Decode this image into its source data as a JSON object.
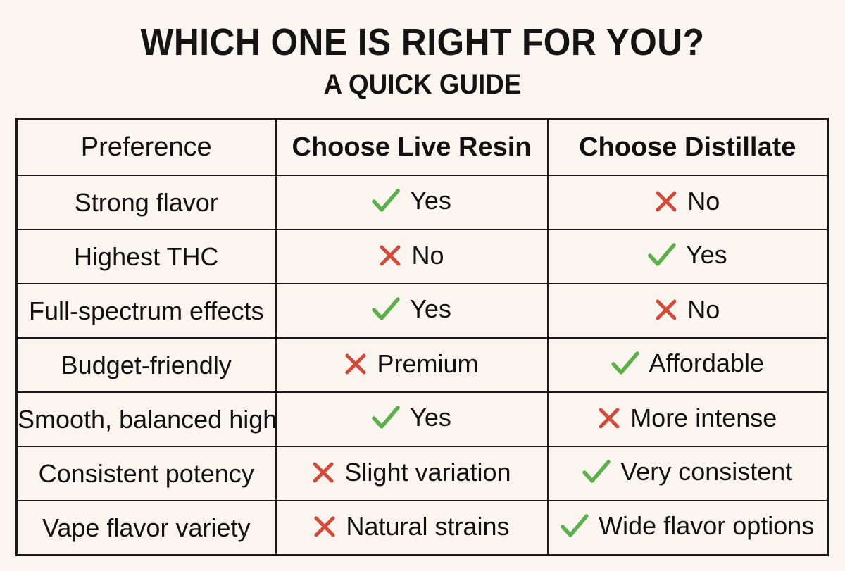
{
  "header": {
    "title": "WHICH ONE IS RIGHT FOR YOU?",
    "subtitle": "A QUICK GUIDE"
  },
  "colors": {
    "background": "#faf6ef",
    "border": "#1a1a1a",
    "check": "#5cb04c",
    "cross": "#d4493a"
  },
  "table": {
    "columns": [
      "Preference",
      "Choose Live Resin",
      "Choose Distillate"
    ],
    "rows": [
      {
        "preference": "Strong flavor",
        "live_resin": {
          "icon": "check-icon",
          "text": "Yes"
        },
        "distillate": {
          "icon": "cross-icon",
          "text": "No"
        }
      },
      {
        "preference": "Highest THC",
        "live_resin": {
          "icon": "cross-icon",
          "text": "No"
        },
        "distillate": {
          "icon": "check-icon",
          "text": "Yes"
        }
      },
      {
        "preference": "Full-spectrum effects",
        "live_resin": {
          "icon": "check-icon",
          "text": "Yes"
        },
        "distillate": {
          "icon": "cross-icon",
          "text": "No"
        }
      },
      {
        "preference": "Budget-friendly",
        "live_resin": {
          "icon": "cross-icon",
          "text": "Premium"
        },
        "distillate": {
          "icon": "check-icon",
          "text": "Affordable"
        }
      },
      {
        "preference": "Smooth, balanced high",
        "live_resin": {
          "icon": "check-icon",
          "text": "Yes"
        },
        "distillate": {
          "icon": "cross-icon",
          "text": "More intense"
        }
      },
      {
        "preference": "Consistent potency",
        "live_resin": {
          "icon": "cross-icon",
          "text": "Slight variation"
        },
        "distillate": {
          "icon": "check-icon",
          "text": "Very consistent"
        }
      },
      {
        "preference": "Vape flavor variety",
        "live_resin": {
          "icon": "cross-icon",
          "text": "Natural strains"
        },
        "distillate": {
          "icon": "check-icon",
          "text": "Wide flavor options"
        }
      }
    ]
  }
}
